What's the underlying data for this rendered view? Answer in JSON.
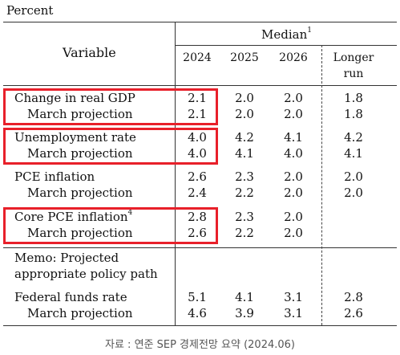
{
  "unit_label": "Percent",
  "header": {
    "variable": "Variable",
    "median": "Median",
    "median_footnote": "1",
    "years": [
      "2024",
      "2025",
      "2026"
    ],
    "longer_run": [
      "Longer",
      "run"
    ]
  },
  "rows": [
    {
      "label": "Change in real GDP",
      "values": [
        "2.1",
        "2.0",
        "2.0",
        "1.8"
      ]
    },
    {
      "label": "March projection",
      "values": [
        "2.1",
        "2.0",
        "2.0",
        "1.8"
      ]
    },
    {
      "label": "Unemployment rate",
      "values": [
        "4.0",
        "4.2",
        "4.1",
        "4.2"
      ]
    },
    {
      "label": "March projection",
      "values": [
        "4.0",
        "4.1",
        "4.0",
        "4.1"
      ]
    },
    {
      "label": "PCE inflation",
      "values": [
        "2.6",
        "2.3",
        "2.0",
        "2.0"
      ]
    },
    {
      "label": "March projection",
      "values": [
        "2.4",
        "2.2",
        "2.0",
        "2.0"
      ]
    },
    {
      "label": "Core PCE inflation",
      "footnote": "4",
      "values": [
        "2.8",
        "2.3",
        "2.0",
        ""
      ]
    },
    {
      "label": "March projection",
      "values": [
        "2.6",
        "2.2",
        "2.0",
        ""
      ]
    }
  ],
  "memo": [
    "Memo: Projected",
    "appropriate policy path"
  ],
  "fed_rows": [
    {
      "label": "Federal funds rate",
      "values": [
        "5.1",
        "4.1",
        "3.1",
        "2.8"
      ]
    },
    {
      "label": "March projection",
      "values": [
        "4.6",
        "3.9",
        "3.1",
        "2.6"
      ]
    }
  ],
  "highlight_color": "#e8202a",
  "source": "자료 : 연준 SEP 경제전망 요약 (2024.06)"
}
